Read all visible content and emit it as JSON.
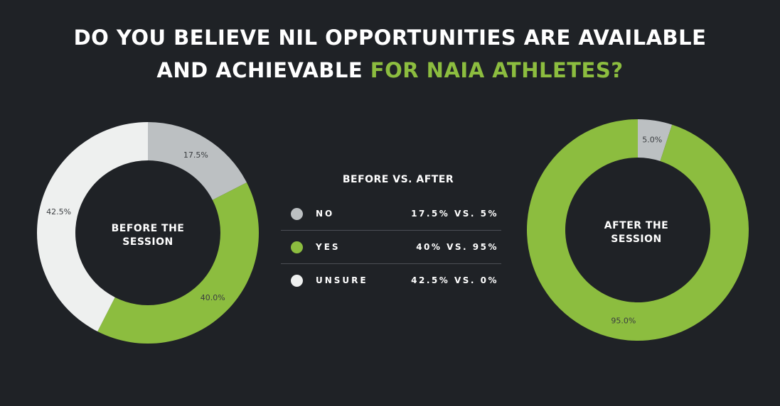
{
  "title": {
    "line1": "DO YOU BELIEVE NIL OPPORTUNITIES ARE  AVAILABLE",
    "line2_plain": "AND ACHIEVABLE ",
    "line2_accent": "FOR NAIA ATHLETES?"
  },
  "legend": {
    "title": "BEFORE VS. AFTER",
    "rows": [
      {
        "label": "NO",
        "value": "17.5% VS. 5%",
        "color": "#bcc0c2"
      },
      {
        "label": "YES",
        "value": "40% VS. 95%",
        "color": "#8cbd3f"
      },
      {
        "label": "UNSURE",
        "value": "42.5% VS. 0%",
        "color": "#eef0ef"
      }
    ]
  },
  "colors": {
    "background": "#1f2226",
    "no": "#bcc0c2",
    "yes": "#8cbd3f",
    "unsure": "#eef0ef",
    "accent": "#8cbd3f"
  },
  "chart_data": [
    {
      "type": "pie",
      "center_label": [
        "BEFORE THE",
        "SESSION"
      ],
      "slices": [
        {
          "category": "NO",
          "value": 17.5,
          "label": "17.5%",
          "color": "#bcc0c2"
        },
        {
          "category": "YES",
          "value": 40.0,
          "label": "40.0%",
          "color": "#8cbd3f"
        },
        {
          "category": "UNSURE",
          "value": 42.5,
          "label": "42.5%",
          "color": "#eef0ef"
        }
      ]
    },
    {
      "type": "pie",
      "center_label": [
        "AFTER THE",
        "SESSION"
      ],
      "slices": [
        {
          "category": "NO",
          "value": 5.0,
          "label": "5.0%",
          "color": "#bcc0c2"
        },
        {
          "category": "YES",
          "value": 95.0,
          "label": "95.0%",
          "color": "#8cbd3f"
        }
      ]
    }
  ]
}
